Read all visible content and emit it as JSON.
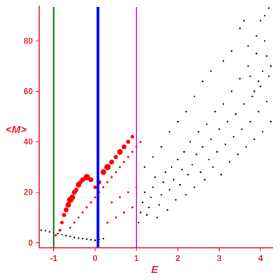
{
  "chart_data": {
    "type": "scatter",
    "xlabel": "E",
    "ylabel": "<M>",
    "xlim": [
      -1.35,
      4.3
    ],
    "ylim": [
      -2,
      94
    ],
    "x_ticks": [
      {
        "value": -1,
        "label": "-1"
      },
      {
        "value": 0,
        "label": "0"
      },
      {
        "value": 1,
        "label": "1"
      },
      {
        "value": 2,
        "label": "2"
      },
      {
        "value": 3,
        "label": "3"
      },
      {
        "value": 4,
        "label": "4"
      }
    ],
    "y_ticks": [
      {
        "value": 0,
        "label": "0"
      },
      {
        "value": 20,
        "label": "20"
      },
      {
        "value": 40,
        "label": "40"
      },
      {
        "value": 60,
        "label": "60"
      },
      {
        "value": 80,
        "label": "80"
      }
    ],
    "grid": false,
    "legend": "none",
    "vertical_lines": [
      {
        "x": -1,
        "color": "#1a7a1a",
        "width": 2
      },
      {
        "x": 0.07,
        "color": "#0000ff",
        "width": 4
      },
      {
        "x": 1.0,
        "color": "#e020c0",
        "width": 2
      }
    ],
    "series": [
      {
        "color": "#000000",
        "marker_size": 1.2,
        "points": [
          [
            -1.3,
            5.0
          ],
          [
            -1.2,
            4.8
          ],
          [
            -1.1,
            4.3
          ],
          [
            -1.0,
            4.0
          ],
          [
            -0.9,
            3.6
          ],
          [
            -0.8,
            3.2
          ],
          [
            -0.7,
            2.8
          ],
          [
            -0.6,
            2.5
          ],
          [
            -0.5,
            2.1
          ],
          [
            -0.4,
            1.8
          ],
          [
            -0.3,
            1.6
          ],
          [
            -0.2,
            1.4
          ],
          [
            -0.1,
            1.2
          ],
          [
            0.0,
            1.0
          ],
          [
            0.1,
            1.3
          ],
          [
            0.2,
            1.6
          ],
          [
            1.05,
            8.0
          ],
          [
            1.1,
            12.0
          ],
          [
            1.15,
            16.0
          ],
          [
            1.2,
            20.0
          ],
          [
            1.25,
            11.0
          ],
          [
            1.3,
            14.0
          ],
          [
            1.35,
            18.0
          ],
          [
            1.4,
            22.0
          ],
          [
            1.45,
            26.0
          ],
          [
            1.5,
            10.0
          ],
          [
            1.55,
            15.0
          ],
          [
            1.6,
            19.0
          ],
          [
            1.65,
            24.0
          ],
          [
            1.7,
            28.0
          ],
          [
            1.75,
            13.0
          ],
          [
            1.8,
            21.0
          ],
          [
            1.85,
            30.0
          ],
          [
            1.9,
            25.0
          ],
          [
            1.95,
            17.0
          ],
          [
            2.0,
            33.0
          ],
          [
            2.05,
            23.0
          ],
          [
            2.1,
            29.0
          ],
          [
            2.15,
            36.0
          ],
          [
            2.2,
            19.0
          ],
          [
            2.25,
            27.0
          ],
          [
            2.3,
            40.0
          ],
          [
            2.35,
            31.0
          ],
          [
            2.4,
            22.0
          ],
          [
            2.45,
            35.0
          ],
          [
            2.5,
            44.0
          ],
          [
            2.55,
            28.0
          ],
          [
            2.6,
            38.0
          ],
          [
            2.65,
            25.0
          ],
          [
            2.7,
            47.0
          ],
          [
            2.75,
            33.0
          ],
          [
            2.8,
            41.0
          ],
          [
            2.85,
            30.0
          ],
          [
            2.9,
            52.0
          ],
          [
            2.95,
            36.0
          ],
          [
            3.0,
            45.0
          ],
          [
            3.05,
            27.0
          ],
          [
            3.1,
            55.0
          ],
          [
            3.15,
            39.0
          ],
          [
            3.2,
            48.0
          ],
          [
            3.25,
            32.0
          ],
          [
            3.3,
            60.0
          ],
          [
            3.35,
            42.0
          ],
          [
            3.4,
            51.0
          ],
          [
            3.45,
            35.0
          ],
          [
            3.5,
            65.0
          ],
          [
            3.55,
            45.0
          ],
          [
            3.6,
            55.0
          ],
          [
            3.65,
            38.0
          ],
          [
            3.7,
            70.0
          ],
          [
            3.75,
            48.0
          ],
          [
            3.8,
            58.0
          ],
          [
            3.85,
            41.0
          ],
          [
            3.9,
            75.0
          ],
          [
            3.95,
            52.0
          ],
          [
            4.0,
            62.0
          ],
          [
            4.05,
            44.0
          ],
          [
            4.1,
            80.0
          ],
          [
            4.15,
            56.0
          ],
          [
            4.2,
            66.0
          ],
          [
            4.25,
            48.0
          ],
          [
            3.5,
            85.0
          ],
          [
            3.7,
            78.0
          ],
          [
            3.9,
            82.0
          ],
          [
            4.0,
            88.0
          ],
          [
            4.1,
            90.0
          ],
          [
            4.2,
            93.0
          ],
          [
            3.6,
            88.0
          ],
          [
            3.3,
            76.0
          ],
          [
            3.1,
            72.0
          ],
          [
            2.8,
            68.0
          ],
          [
            2.6,
            64.0
          ],
          [
            2.4,
            58.0
          ],
          [
            2.2,
            52.0
          ],
          [
            2.0,
            48.0
          ],
          [
            1.8,
            44.0
          ],
          [
            1.6,
            38.0
          ],
          [
            1.4,
            34.0
          ],
          [
            1.2,
            30.0
          ],
          [
            4.25,
            70.0
          ],
          [
            4.15,
            74.0
          ],
          [
            4.05,
            68.0
          ],
          [
            3.95,
            64.0
          ],
          [
            3.85,
            60.0
          ],
          [
            3.75,
            66.0
          ]
        ]
      },
      {
        "color": "#ff0000",
        "points": [
          [
            -0.95,
            3.0,
            1.5
          ],
          [
            -0.85,
            5.0,
            2.0
          ],
          [
            -0.8,
            8.0,
            2.5
          ],
          [
            -0.75,
            11.0,
            3.0
          ],
          [
            -0.7,
            13.0,
            3.5
          ],
          [
            -0.65,
            15.0,
            4.0
          ],
          [
            -0.6,
            17.0,
            4.5
          ],
          [
            -0.55,
            18.0,
            4.0
          ],
          [
            -0.5,
            20.0,
            3.5
          ],
          [
            -0.45,
            21.0,
            3.0
          ],
          [
            -0.4,
            23.0,
            4.0
          ],
          [
            -0.35,
            24.0,
            3.0
          ],
          [
            -0.3,
            25.0,
            3.5
          ],
          [
            -0.2,
            26.0,
            4.5
          ],
          [
            -0.1,
            25.0,
            3.5
          ],
          [
            0.0,
            22.0,
            2.5
          ],
          [
            0.1,
            24.0,
            3.0
          ],
          [
            0.2,
            28.0,
            4.0
          ],
          [
            0.3,
            30.0,
            4.5
          ],
          [
            0.4,
            32.0,
            3.5
          ],
          [
            0.5,
            34.0,
            3.0
          ],
          [
            0.6,
            36.0,
            4.0
          ],
          [
            0.7,
            38.0,
            3.5
          ],
          [
            0.8,
            40.0,
            3.0
          ],
          [
            0.9,
            42.0,
            2.5
          ],
          [
            -0.6,
            6.0,
            1.5
          ],
          [
            -0.5,
            8.0,
            1.5
          ],
          [
            -0.4,
            10.0,
            1.5
          ],
          [
            -0.3,
            12.0,
            1.5
          ],
          [
            -0.2,
            14.0,
            1.5
          ],
          [
            -0.1,
            16.0,
            1.5
          ],
          [
            0.0,
            18.0,
            1.5
          ],
          [
            0.1,
            20.0,
            1.5
          ],
          [
            0.2,
            22.0,
            1.5
          ],
          [
            0.3,
            24.0,
            1.5
          ],
          [
            0.4,
            26.0,
            1.5
          ],
          [
            0.5,
            28.0,
            1.5
          ],
          [
            0.6,
            30.0,
            1.5
          ],
          [
            0.7,
            32.0,
            1.5
          ],
          [
            0.8,
            34.0,
            1.5
          ],
          [
            0.9,
            36.0,
            1.5
          ],
          [
            1.0,
            38.0,
            1.5
          ],
          [
            1.1,
            40.0,
            1.5
          ],
          [
            0.3,
            8.0,
            1.5
          ],
          [
            0.5,
            10.0,
            1.5
          ],
          [
            0.7,
            12.0,
            1.5
          ],
          [
            0.9,
            14.0,
            1.5
          ],
          [
            0.4,
            16.0,
            1.5
          ],
          [
            0.6,
            18.0,
            1.5
          ],
          [
            0.8,
            20.0,
            1.5
          ],
          [
            1.0,
            22.0,
            1.5
          ]
        ]
      }
    ]
  }
}
